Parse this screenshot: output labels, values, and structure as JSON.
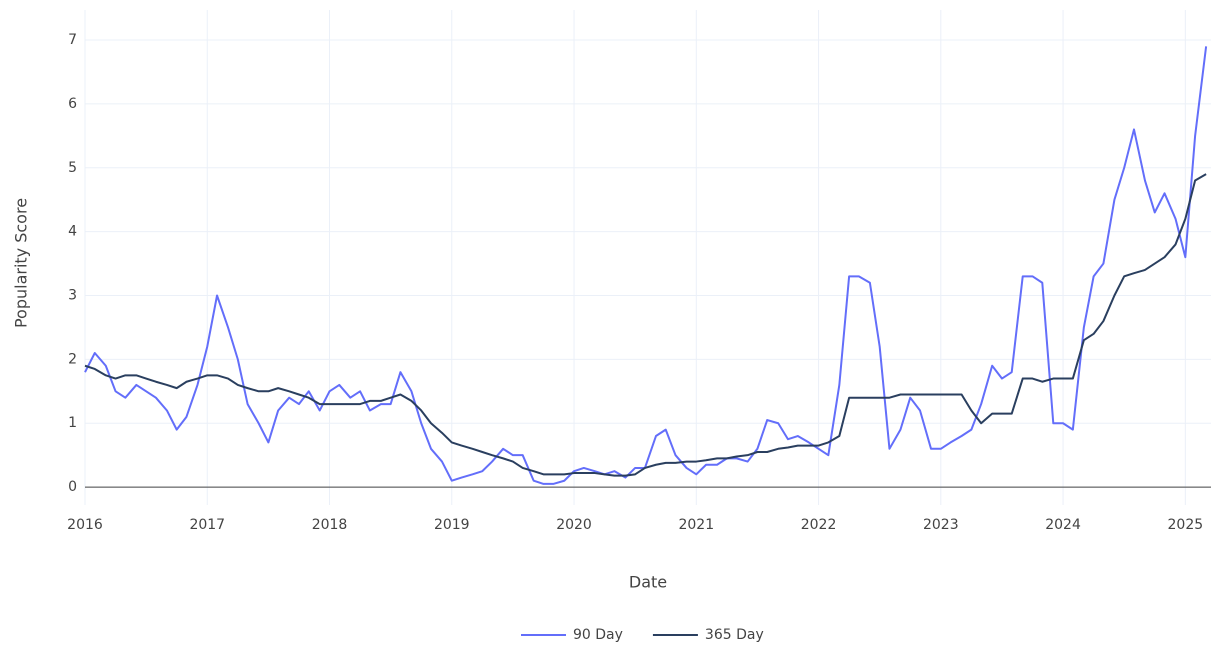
{
  "chart_data": {
    "type": "line",
    "x_label": "Date",
    "y_label": "Popularity Score",
    "x": [
      2016,
      2016.08,
      2016.17,
      2016.25,
      2016.33,
      2016.42,
      2016.5,
      2016.58,
      2016.67,
      2016.75,
      2016.83,
      2016.92,
      2017,
      2017.08,
      2017.17,
      2017.25,
      2017.33,
      2017.42,
      2017.5,
      2017.58,
      2017.67,
      2017.75,
      2017.83,
      2017.92,
      2018,
      2018.08,
      2018.17,
      2018.25,
      2018.33,
      2018.42,
      2018.5,
      2018.58,
      2018.67,
      2018.75,
      2018.83,
      2018.92,
      2019,
      2019.08,
      2019.17,
      2019.25,
      2019.33,
      2019.42,
      2019.5,
      2019.58,
      2019.67,
      2019.75,
      2019.83,
      2019.92,
      2020,
      2020.08,
      2020.17,
      2020.25,
      2020.33,
      2020.42,
      2020.5,
      2020.58,
      2020.67,
      2020.75,
      2020.83,
      2020.92,
      2021,
      2021.08,
      2021.17,
      2021.25,
      2021.33,
      2021.42,
      2021.5,
      2021.58,
      2021.67,
      2021.75,
      2021.83,
      2021.92,
      2022,
      2022.08,
      2022.17,
      2022.25,
      2022.33,
      2022.42,
      2022.5,
      2022.58,
      2022.67,
      2022.75,
      2022.83,
      2022.92,
      2023,
      2023.08,
      2023.17,
      2023.25,
      2023.33,
      2023.42,
      2023.5,
      2023.58,
      2023.67,
      2023.75,
      2023.83,
      2023.92,
      2024,
      2024.08,
      2024.17,
      2024.25,
      2024.33,
      2024.42,
      2024.5,
      2024.58,
      2024.67,
      2024.75,
      2024.83,
      2024.92,
      2025,
      2025.08,
      2025.17
    ],
    "series": [
      {
        "name": "90 Day",
        "color": "#636efa",
        "values": [
          1.8,
          2.1,
          1.9,
          1.5,
          1.4,
          1.6,
          1.5,
          1.4,
          1.2,
          0.9,
          1.1,
          1.6,
          2.2,
          3.0,
          2.5,
          2.0,
          1.3,
          1.0,
          0.7,
          1.2,
          1.4,
          1.3,
          1.5,
          1.2,
          1.5,
          1.6,
          1.4,
          1.5,
          1.2,
          1.3,
          1.3,
          1.8,
          1.5,
          1.0,
          0.6,
          0.4,
          0.1,
          0.15,
          0.2,
          0.25,
          0.4,
          0.6,
          0.5,
          0.5,
          0.1,
          0.05,
          0.05,
          0.1,
          0.25,
          0.3,
          0.25,
          0.2,
          0.25,
          0.15,
          0.3,
          0.3,
          0.8,
          0.9,
          0.5,
          0.3,
          0.2,
          0.35,
          0.35,
          0.45,
          0.45,
          0.4,
          0.6,
          1.05,
          1.0,
          0.75,
          0.8,
          0.7,
          0.6,
          0.5,
          1.6,
          3.3,
          3.3,
          3.2,
          2.2,
          0.6,
          0.9,
          1.4,
          1.2,
          0.6,
          0.6,
          0.7,
          0.8,
          0.9,
          1.3,
          1.9,
          1.7,
          1.8,
          3.3,
          3.3,
          3.2,
          1.0,
          1.0,
          0.9,
          2.5,
          3.3,
          3.5,
          4.5,
          5.0,
          5.6,
          4.8,
          4.3,
          4.6,
          4.2,
          3.6,
          5.5,
          6.9
        ]
      },
      {
        "name": "365 Day",
        "color": "#2a3f5f",
        "values": [
          1.9,
          1.85,
          1.75,
          1.7,
          1.75,
          1.75,
          1.7,
          1.65,
          1.6,
          1.55,
          1.65,
          1.7,
          1.75,
          1.75,
          1.7,
          1.6,
          1.55,
          1.5,
          1.5,
          1.55,
          1.5,
          1.45,
          1.4,
          1.3,
          1.3,
          1.3,
          1.3,
          1.3,
          1.35,
          1.35,
          1.4,
          1.45,
          1.35,
          1.2,
          1.0,
          0.85,
          0.7,
          0.65,
          0.6,
          0.55,
          0.5,
          0.45,
          0.4,
          0.3,
          0.25,
          0.2,
          0.2,
          0.2,
          0.22,
          0.22,
          0.22,
          0.2,
          0.18,
          0.18,
          0.2,
          0.3,
          0.35,
          0.38,
          0.38,
          0.4,
          0.4,
          0.42,
          0.45,
          0.45,
          0.48,
          0.5,
          0.55,
          0.55,
          0.6,
          0.62,
          0.65,
          0.65,
          0.65,
          0.7,
          0.8,
          1.4,
          1.4,
          1.4,
          1.4,
          1.4,
          1.45,
          1.45,
          1.45,
          1.45,
          1.45,
          1.45,
          1.45,
          1.2,
          1.0,
          1.15,
          1.15,
          1.15,
          1.7,
          1.7,
          1.65,
          1.7,
          1.7,
          1.7,
          2.3,
          2.4,
          2.6,
          3.0,
          3.3,
          3.35,
          3.4,
          3.5,
          3.6,
          3.8,
          4.2,
          4.8,
          4.9
        ]
      }
    ],
    "xlim": [
      2016,
      2025.21
    ],
    "xticks": [
      2016,
      2017,
      2018,
      2019,
      2020,
      2021,
      2022,
      2023,
      2024,
      2025
    ],
    "ylim": [
      -0.28,
      7.47
    ],
    "yticks": [
      0,
      1,
      2,
      3,
      4,
      5,
      6,
      7
    ],
    "grid": true,
    "legend": "bottom"
  }
}
